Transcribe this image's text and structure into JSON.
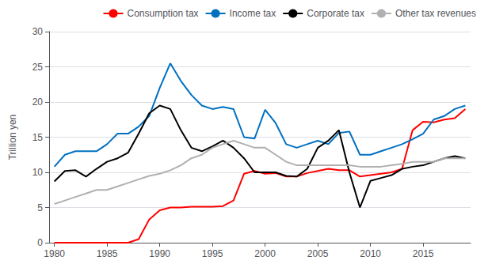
{
  "chart_data": {
    "type": "line",
    "ylabel": "Trillion yen",
    "x": [
      1980,
      1981,
      1982,
      1983,
      1984,
      1985,
      1986,
      1987,
      1988,
      1989,
      1990,
      1991,
      1992,
      1993,
      1994,
      1995,
      1996,
      1997,
      1998,
      1999,
      2000,
      2001,
      2002,
      2003,
      2004,
      2005,
      2006,
      2007,
      2008,
      2009,
      2010,
      2011,
      2012,
      2013,
      2014,
      2015,
      2016,
      2017,
      2018,
      2019
    ],
    "series": [
      {
        "name": "Consumption tax",
        "color": "#ff0000",
        "values": [
          0,
          0,
          0,
          0,
          0,
          0,
          0,
          0,
          0.5,
          3.3,
          4.6,
          5.0,
          5.0,
          5.1,
          5.1,
          5.1,
          5.2,
          6.0,
          9.8,
          10.2,
          9.8,
          9.9,
          9.4,
          9.4,
          9.9,
          10.2,
          10.5,
          10.3,
          10.3,
          9.4,
          9.6,
          9.8,
          10.0,
          10.5,
          16.0,
          17.2,
          17.1,
          17.5,
          17.7,
          19.0
        ]
      },
      {
        "name": "Income tax",
        "color": "#0070c0",
        "values": [
          10.8,
          12.5,
          13.0,
          13.0,
          13.0,
          14.0,
          15.5,
          15.5,
          16.5,
          18.0,
          22.0,
          25.5,
          23.0,
          21.0,
          19.5,
          19.0,
          19.3,
          19.0,
          15.0,
          14.8,
          18.9,
          17.0,
          14.0,
          13.5,
          14.0,
          14.5,
          14.0,
          15.6,
          15.8,
          12.5,
          12.5,
          13.0,
          13.5,
          14.0,
          14.7,
          15.5,
          17.5,
          18.0,
          19.0,
          19.5
        ]
      },
      {
        "name": "Corporate tax",
        "color": "#000000",
        "values": [
          8.7,
          10.2,
          10.3,
          9.4,
          10.5,
          11.5,
          12.0,
          12.8,
          15.5,
          18.4,
          19.5,
          19.0,
          16.0,
          13.5,
          13.0,
          13.7,
          14.5,
          13.5,
          12.0,
          10.0,
          10.0,
          10.0,
          9.5,
          9.4,
          10.5,
          13.5,
          14.5,
          16.0,
          10.0,
          5.0,
          8.8,
          9.2,
          9.6,
          10.5,
          10.8,
          11.0,
          11.5,
          12.0,
          12.3,
          12.0
        ]
      },
      {
        "name": "Other tax revenues",
        "color": "#b0b0b0",
        "values": [
          5.5,
          6.0,
          6.5,
          7.0,
          7.5,
          7.5,
          8.0,
          8.5,
          9.0,
          9.5,
          9.8,
          10.3,
          11.0,
          12.0,
          12.5,
          13.5,
          14.0,
          14.5,
          14.0,
          13.5,
          13.5,
          12.5,
          11.5,
          11.0,
          11.0,
          11.0,
          11.0,
          11.0,
          11.0,
          10.8,
          10.8,
          10.8,
          11.0,
          11.2,
          11.5,
          11.5,
          11.5,
          12.0,
          12.0,
          12.0
        ]
      }
    ],
    "xlim": [
      1979.5,
      2019.5
    ],
    "xticks": [
      1980,
      1985,
      1990,
      1995,
      2000,
      2005,
      2010,
      2015
    ],
    "ylim": [
      0,
      30
    ],
    "yticks": [
      0,
      5,
      10,
      15,
      20,
      25,
      30
    ],
    "grid": true,
    "legend": "upper right"
  }
}
